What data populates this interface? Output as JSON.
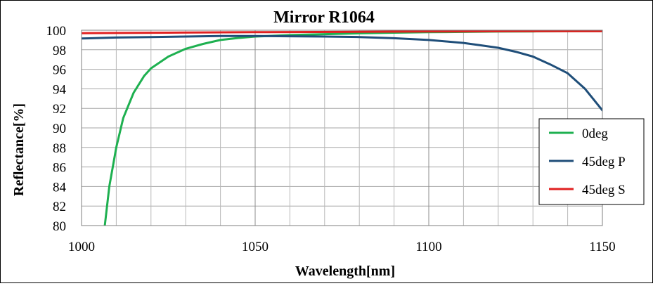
{
  "chart_data": {
    "type": "line",
    "title": "Mirror  R1064",
    "xlabel": "Wavelength[nm]",
    "ylabel": "Reflectance[%]",
    "xlim": [
      1000,
      1150
    ],
    "ylim": [
      80,
      100
    ],
    "x_ticks": [
      1000,
      1050,
      1100,
      1150
    ],
    "y_ticks": [
      80,
      82,
      84,
      86,
      88,
      90,
      92,
      94,
      96,
      98,
      100
    ],
    "x_minor_step": 10,
    "grid": true,
    "legend": "right",
    "series": [
      {
        "name": "0deg",
        "color": "#1eb050",
        "points": [
          [
            1006.7,
            80
          ],
          [
            1008,
            84
          ],
          [
            1010,
            88
          ],
          [
            1012,
            91
          ],
          [
            1015,
            93.6
          ],
          [
            1018,
            95.3
          ],
          [
            1020,
            96.1
          ],
          [
            1025,
            97.3
          ],
          [
            1030,
            98.1
          ],
          [
            1035,
            98.6
          ],
          [
            1040,
            99
          ],
          [
            1045,
            99.2
          ],
          [
            1050,
            99.35
          ],
          [
            1060,
            99.5
          ],
          [
            1070,
            99.6
          ],
          [
            1080,
            99.68
          ],
          [
            1090,
            99.75
          ],
          [
            1100,
            99.8
          ],
          [
            1110,
            99.83
          ],
          [
            1120,
            99.86
          ],
          [
            1130,
            99.88
          ],
          [
            1140,
            99.89
          ],
          [
            1150,
            99.9
          ]
        ]
      },
      {
        "name": "45deg P",
        "color": "#1f4e79",
        "points": [
          [
            1000,
            99.15
          ],
          [
            1010,
            99.25
          ],
          [
            1020,
            99.3
          ],
          [
            1030,
            99.35
          ],
          [
            1040,
            99.4
          ],
          [
            1050,
            99.4
          ],
          [
            1060,
            99.38
          ],
          [
            1070,
            99.35
          ],
          [
            1080,
            99.3
          ],
          [
            1090,
            99.18
          ],
          [
            1100,
            99.0
          ],
          [
            1105,
            98.85
          ],
          [
            1110,
            98.7
          ],
          [
            1115,
            98.45
          ],
          [
            1120,
            98.2
          ],
          [
            1125,
            97.8
          ],
          [
            1130,
            97.3
          ],
          [
            1135,
            96.5
          ],
          [
            1140,
            95.6
          ],
          [
            1145,
            94.0
          ],
          [
            1150,
            91.8
          ]
        ]
      },
      {
        "name": "45deg S",
        "color": "#e02020",
        "points": [
          [
            1000,
            99.7
          ],
          [
            1025,
            99.75
          ],
          [
            1050,
            99.8
          ],
          [
            1075,
            99.83
          ],
          [
            1100,
            99.87
          ],
          [
            1125,
            99.9
          ],
          [
            1150,
            99.9
          ]
        ]
      }
    ]
  }
}
